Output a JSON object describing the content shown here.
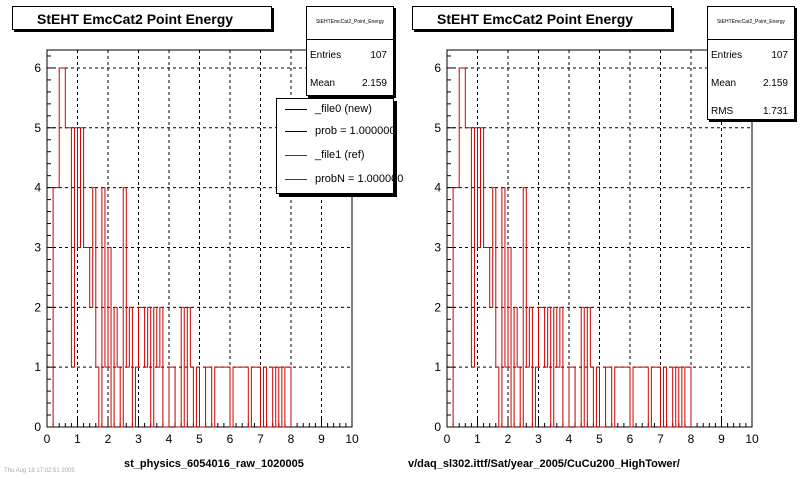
{
  "chart_data": [
    {
      "type": "step",
      "title": "StEHT EmcCat2 Point Energy",
      "stats": {
        "name": "StEHTEmcCat2_Point_Energy",
        "entries_label": "Entries",
        "entries": "107",
        "mean_label": "Mean",
        "mean": "2.159"
      },
      "xlabel": "st_physics_6054016_raw_1020005",
      "xlim": [
        0,
        10
      ],
      "ylim": [
        0,
        6.3
      ],
      "xticks": [
        "0",
        "1",
        "2",
        "3",
        "4",
        "5",
        "6",
        "7",
        "8",
        "9",
        "10"
      ],
      "yticks": [
        "0",
        "1",
        "2",
        "3",
        "4",
        "5",
        "6"
      ],
      "grid": true,
      "legend": {
        "placement": "top-right",
        "entries": [
          {
            "label": "_file0 (new)",
            "color": "#000000"
          },
          {
            "label": "prob = 1.000000",
            "color": "#000000"
          },
          {
            "label": "_file1 (ref)",
            "color": "#cc0000"
          },
          {
            "label": "probN = 1.000000",
            "color": "#cc0000"
          }
        ]
      },
      "series": [
        {
          "color": "#cc0000",
          "bin_edges": [
            0.2,
            0.4,
            0.6,
            0.8,
            0.9,
            1.0,
            1.1,
            1.2,
            1.4,
            1.5,
            1.6,
            1.7,
            1.8,
            1.9,
            2.0,
            2.1,
            2.2,
            2.3,
            2.4,
            2.5,
            2.6,
            2.7,
            2.8,
            2.9,
            3.0,
            3.2,
            3.3,
            3.4,
            3.5,
            3.6,
            3.7,
            3.8,
            4.0,
            4.2,
            4.4,
            4.5,
            4.6,
            4.7,
            4.8,
            4.9,
            5.0,
            5.2,
            5.4,
            5.5,
            6.0,
            6.1,
            6.6,
            6.7,
            7.0,
            7.1,
            7.2,
            7.4,
            7.5,
            7.6,
            7.7,
            7.8,
            8.0
          ],
          "values": [
            4,
            6,
            5,
            1,
            5,
            3,
            5,
            3,
            2,
            4,
            1,
            0,
            4,
            1,
            3,
            0,
            2,
            1,
            0,
            4,
            1,
            2,
            0,
            1,
            2,
            1,
            2,
            0,
            2,
            1,
            2,
            0,
            1,
            0,
            2,
            0,
            2,
            1,
            0,
            1,
            0,
            1,
            0,
            1,
            0,
            1,
            0,
            1,
            0,
            1,
            0,
            1,
            0,
            1,
            0,
            1
          ]
        }
      ]
    },
    {
      "type": "step",
      "title": "StEHT EmcCat2 Point Energy",
      "stats": {
        "name": "StEHTEmcCat2_Point_Energy",
        "entries_label": "Entries",
        "entries": "107",
        "mean_label": "Mean",
        "mean": "2.159",
        "rms_label": "RMS",
        "rms": "1.731"
      },
      "xlabel": "v/daq_sl302.ittf/Sat/year_2005/CuCu200_HighTower/",
      "xlim": [
        0,
        10
      ],
      "ylim": [
        0,
        6.3
      ],
      "xticks": [
        "0",
        "1",
        "2",
        "3",
        "4",
        "5",
        "6",
        "7",
        "8",
        "9",
        "10"
      ],
      "yticks": [
        "0",
        "1",
        "2",
        "3",
        "4",
        "5",
        "6"
      ],
      "grid": true,
      "series": [
        {
          "color": "#cc0000",
          "bin_edges": [
            0.2,
            0.4,
            0.6,
            0.8,
            0.9,
            1.0,
            1.1,
            1.2,
            1.4,
            1.5,
            1.6,
            1.7,
            1.8,
            1.9,
            2.0,
            2.1,
            2.2,
            2.3,
            2.4,
            2.5,
            2.6,
            2.7,
            2.8,
            2.9,
            3.0,
            3.2,
            3.3,
            3.4,
            3.5,
            3.6,
            3.7,
            3.8,
            4.0,
            4.2,
            4.4,
            4.5,
            4.6,
            4.7,
            4.8,
            4.9,
            5.0,
            5.2,
            5.4,
            5.5,
            6.0,
            6.1,
            6.6,
            6.7,
            7.0,
            7.1,
            7.2,
            7.4,
            7.5,
            7.6,
            7.7,
            7.8,
            8.0
          ],
          "values": [
            4,
            6,
            5,
            1,
            5,
            3,
            5,
            3,
            2,
            4,
            1,
            0,
            4,
            1,
            3,
            0,
            2,
            1,
            0,
            4,
            1,
            2,
            0,
            1,
            2,
            1,
            2,
            0,
            2,
            1,
            2,
            0,
            1,
            0,
            2,
            0,
            2,
            1,
            0,
            1,
            0,
            1,
            0,
            1,
            0,
            1,
            0,
            1,
            0,
            1,
            0,
            1,
            0,
            1,
            0,
            1
          ]
        }
      ]
    }
  ],
  "footer_text": "Thu Aug 18 17:02:51 2005"
}
